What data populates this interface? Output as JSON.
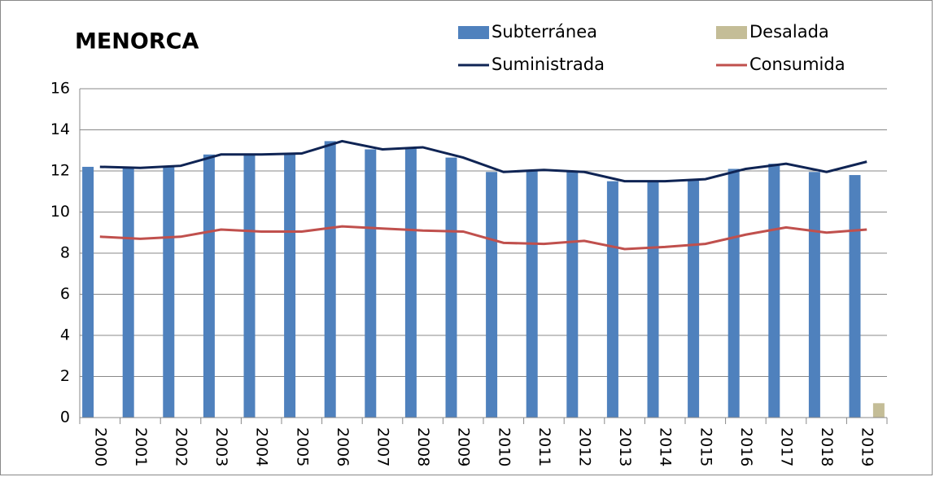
{
  "chart_data": {
    "type": "bar",
    "title": "MENORCA",
    "categories": [
      "2000",
      "2001",
      "2002",
      "2003",
      "2004",
      "2005",
      "2006",
      "2007",
      "2008",
      "2009",
      "2010",
      "2011",
      "2012",
      "2013",
      "2014",
      "2015",
      "2016",
      "2017",
      "2018",
      "2019"
    ],
    "series": [
      {
        "name": "Subterránea",
        "type": "bar",
        "color": "#4f81bd",
        "values": [
          12.2,
          12.15,
          12.25,
          12.8,
          12.8,
          12.85,
          13.45,
          13.05,
          13.15,
          12.65,
          11.95,
          12.05,
          11.95,
          11.5,
          11.5,
          11.6,
          12.1,
          12.35,
          11.95,
          11.8
        ]
      },
      {
        "name": "Desalada",
        "type": "bar",
        "color": "#c4bd97",
        "values": [
          0,
          0,
          0,
          0,
          0,
          0,
          0,
          0,
          0,
          0,
          0,
          0,
          0,
          0,
          0,
          0,
          0,
          0,
          0,
          0.7
        ]
      },
      {
        "name": "Suministrada",
        "type": "line",
        "color": "#0f2454",
        "values": [
          12.2,
          12.15,
          12.25,
          12.8,
          12.8,
          12.85,
          13.45,
          13.05,
          13.15,
          12.65,
          11.95,
          12.05,
          11.95,
          11.5,
          11.5,
          11.6,
          12.1,
          12.35,
          11.95,
          12.45
        ]
      },
      {
        "name": "Consumida",
        "type": "line",
        "color": "#c0504d",
        "values": [
          8.8,
          8.7,
          8.8,
          9.15,
          9.05,
          9.05,
          9.3,
          9.2,
          9.1,
          9.05,
          8.5,
          8.45,
          8.6,
          8.2,
          8.3,
          8.45,
          8.9,
          9.25,
          9.0,
          9.15
        ]
      }
    ],
    "ylim": [
      0,
      16
    ],
    "yticks": [
      0,
      2,
      4,
      6,
      8,
      10,
      12,
      14,
      16
    ],
    "grid": true
  }
}
